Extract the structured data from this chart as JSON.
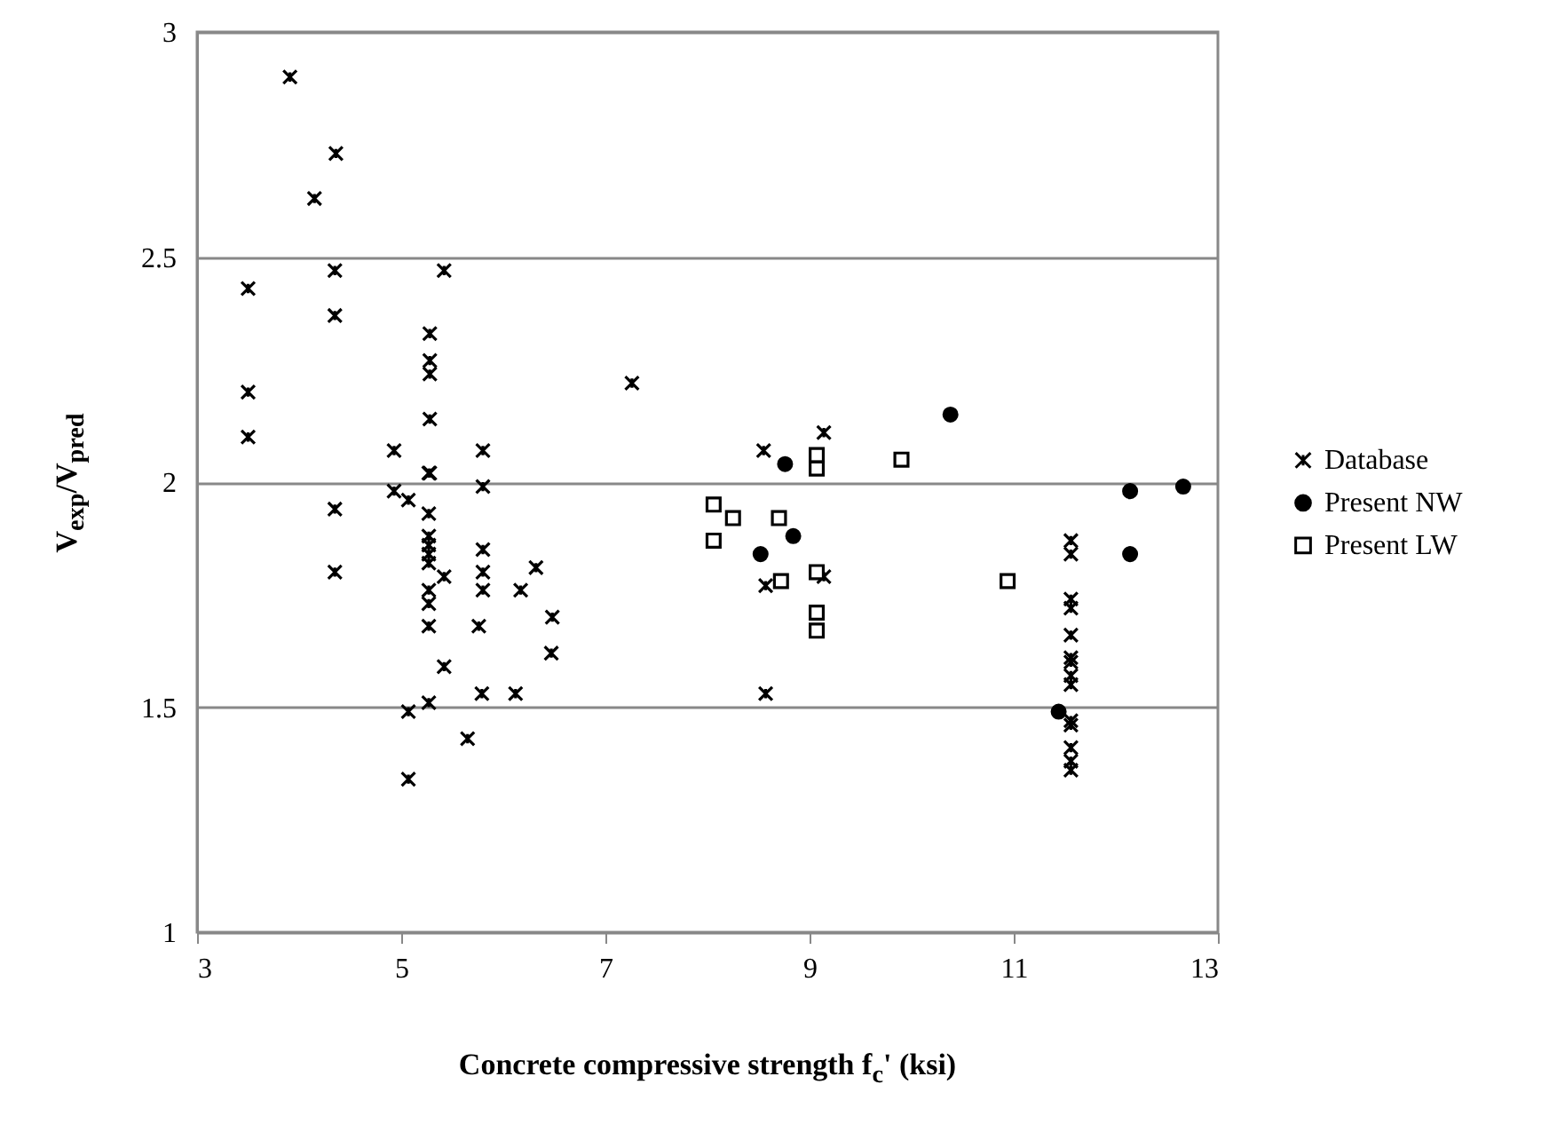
{
  "chart_data": {
    "type": "scatter",
    "xlabel": "Concrete compressive strength f$_{c}$' (ksi)",
    "ylabel": "V$_{exp}$/V$_{pred}$",
    "xlim": [
      3,
      13
    ],
    "xticks": [
      3,
      5,
      7,
      9,
      11,
      13
    ],
    "ylim": [
      1,
      3
    ],
    "yticks": [
      1,
      1.5,
      2,
      2.5,
      3
    ],
    "grid": "y",
    "legend": "right",
    "series": [
      {
        "name": "Database",
        "color": "#000000",
        "marker": "cross",
        "x": [
          3.91,
          4.36,
          4.15,
          4.35,
          5.42,
          3.5,
          4.35,
          5.28,
          5.28,
          5.28,
          7.26,
          3.5,
          5.28,
          3.5,
          4.93,
          5.8,
          5.28,
          4.93,
          5.07,
          5.27,
          5.8,
          4.35,
          5.27,
          5.27,
          5.27,
          5.27,
          5.27,
          5.8,
          4.35,
          5.42,
          5.8,
          6.32,
          5.27,
          5.27,
          5.8,
          6.17,
          6.48,
          5.27,
          5.76,
          6.47,
          5.42,
          5.79,
          6.12,
          5.07,
          5.27,
          5.65,
          5.07,
          8.55,
          9.14,
          8.57,
          9.14,
          8.57,
          11.56,
          11.56,
          11.56,
          11.56,
          11.56,
          11.56,
          11.56,
          11.56,
          11.56,
          11.56,
          11.56,
          11.56,
          11.56,
          11.56
        ],
        "values": [
          2.9,
          2.73,
          2.63,
          2.47,
          2.47,
          2.43,
          2.37,
          2.33,
          2.27,
          2.24,
          2.22,
          2.2,
          2.14,
          2.1,
          2.07,
          2.07,
          2.02,
          1.98,
          1.96,
          2.02,
          1.99,
          1.94,
          1.93,
          1.88,
          1.86,
          1.84,
          1.82,
          1.85,
          1.8,
          1.79,
          1.8,
          1.81,
          1.76,
          1.73,
          1.76,
          1.76,
          1.7,
          1.68,
          1.68,
          1.62,
          1.59,
          1.53,
          1.53,
          1.49,
          1.51,
          1.43,
          1.34,
          2.07,
          2.11,
          1.77,
          1.79,
          1.53,
          1.87,
          1.84,
          1.74,
          1.72,
          1.66,
          1.61,
          1.6,
          1.57,
          1.55,
          1.47,
          1.46,
          1.41,
          1.38,
          1.36
        ]
      },
      {
        "name": "Present NW",
        "color": "#000000",
        "marker": "circle",
        "x": [
          8.76,
          10.38,
          8.84,
          8.52,
          11.44,
          12.14,
          12.66,
          12.14
        ],
        "values": [
          2.04,
          2.15,
          1.88,
          1.84,
          1.49,
          1.98,
          1.99,
          1.84
        ]
      },
      {
        "name": "Present LW",
        "color": "#000000",
        "marker": "square",
        "x": [
          8.06,
          8.25,
          8.06,
          8.7,
          8.72,
          9.07,
          9.07,
          9.07,
          9.07,
          9.07,
          9.9,
          10.94
        ],
        "values": [
          1.95,
          1.92,
          1.87,
          1.92,
          1.78,
          2.06,
          2.03,
          1.8,
          1.71,
          1.67,
          2.05,
          1.78
        ]
      }
    ]
  }
}
